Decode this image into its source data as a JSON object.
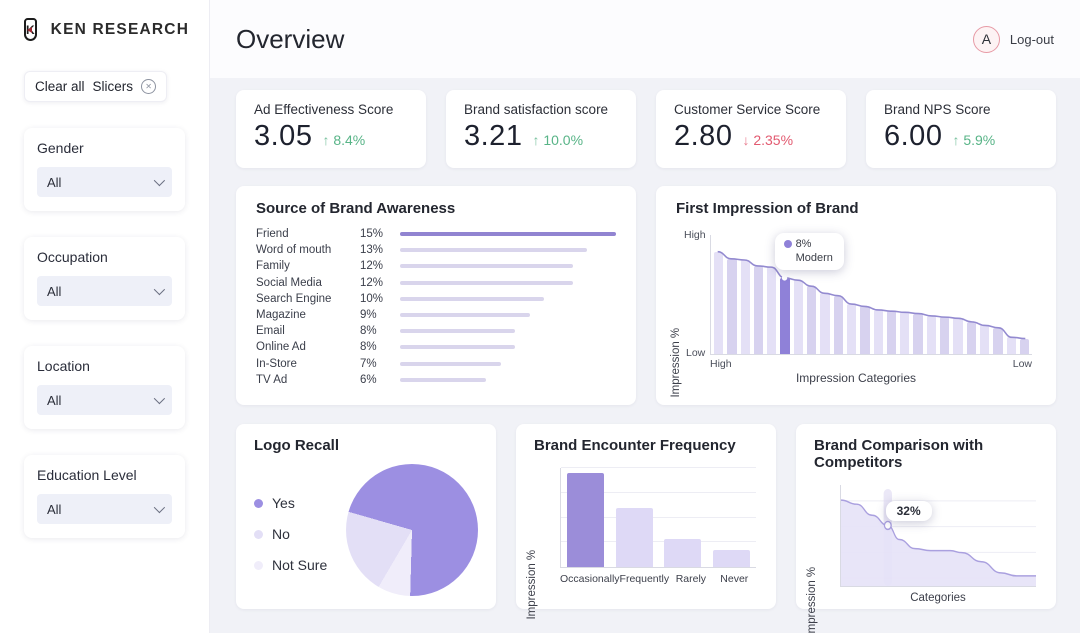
{
  "header": {
    "brand": "KEN RESEARCH",
    "title": "Overview",
    "avatar_letter": "A",
    "logout_label": "Log-out"
  },
  "sidebar": {
    "clear_button": {
      "label_1": "Clear all",
      "label_2": "Slicers"
    },
    "filters": [
      {
        "label": "Gender",
        "value": "All"
      },
      {
        "label": "Occupation",
        "value": "All"
      },
      {
        "label": "Location",
        "value": "All"
      },
      {
        "label": "Education Level",
        "value": "All"
      }
    ]
  },
  "kpis": [
    {
      "label": "Ad Effectiveness Score",
      "value": "3.05",
      "arrow": "↑",
      "delta": "8.4%",
      "direction": "up"
    },
    {
      "label": "Brand satisfaction score",
      "value": "3.21",
      "arrow": "↑",
      "delta": "10.0%",
      "direction": "up"
    },
    {
      "label": "Customer Service Score",
      "value": "2.80",
      "arrow": "↓",
      "delta": "2.35%",
      "direction": "down"
    },
    {
      "label": "Brand NPS Score",
      "value": "6.00",
      "arrow": "↑",
      "delta": "5.9%",
      "direction": "up"
    }
  ],
  "colors": {
    "accent": "#9c8fe2",
    "bar_strong": "#9184d1",
    "bar_light": "#d9d5ec",
    "imp_bar_a": "#e4e0f6",
    "imp_bar_b": "#d7d2ef",
    "imp_highlight": "#8f81d8",
    "line": "#938ad0",
    "pie": [
      "#9c8fe2",
      "#e3dff6",
      "#f0edfa"
    ],
    "area_fill": "#e6e2f7",
    "area_stroke": "#aaa0df",
    "band": "#ddd8f2",
    "up": "#58b487",
    "down": "#e25a70"
  },
  "chart_data": [
    {
      "type": "bar",
      "orientation": "horizontal",
      "title": "Source of Brand Awareness",
      "categories": [
        "Friend",
        "Word of mouth",
        "Family",
        "Social Media",
        "Search Engine",
        "Magazine",
        "Email",
        "Online Ad",
        "In-Store",
        "TV Ad"
      ],
      "values": [
        15,
        13,
        12,
        12,
        10,
        9,
        8,
        8,
        7,
        6
      ],
      "unit": "%",
      "highlight_index": 0,
      "xlim": [
        0,
        15
      ]
    },
    {
      "type": "bar",
      "title": "First Impression of Brand",
      "ylabel": "Impression %",
      "xlabel": "Impression Categories",
      "y_ticks": [
        "High",
        "Low"
      ],
      "x_ticks": [
        "High",
        "Low"
      ],
      "values": [
        86,
        80,
        79,
        74,
        73,
        64,
        62,
        57,
        51,
        49,
        42,
        40,
        37,
        36,
        35,
        34,
        32,
        31,
        30,
        27,
        24,
        22,
        14,
        13
      ],
      "highlight_index": 5,
      "line_overlay": true,
      "tooltip": {
        "value": "8%",
        "label": "Modern"
      }
    },
    {
      "type": "pie",
      "title": "Logo Recall",
      "legend": [
        "Yes",
        "No",
        "Not Sure"
      ],
      "values": [
        71,
        21,
        8
      ],
      "start_angle_deg": 286,
      "draw_order": [
        0,
        2,
        1
      ],
      "legend_position": "left"
    },
    {
      "type": "bar",
      "title": "Brand Encounter Frequency",
      "categories": [
        "Occasionally",
        "Frequently",
        "Rarely",
        "Never"
      ],
      "values": [
        95,
        60,
        28,
        17
      ],
      "ylabel": "Impression %",
      "highlight_index": 0,
      "grid": true
    },
    {
      "type": "area",
      "title": "Brand Comparison with Competitors",
      "ylabel": "Impression %",
      "xlabel": "Categories",
      "grid": true,
      "points": [
        [
          0,
          85
        ],
        [
          8,
          81
        ],
        [
          16,
          70
        ],
        [
          24,
          60
        ],
        [
          30,
          46
        ],
        [
          38,
          37
        ],
        [
          46,
          35
        ],
        [
          56,
          35
        ],
        [
          62,
          33
        ],
        [
          72,
          24
        ],
        [
          82,
          13
        ],
        [
          90,
          10
        ],
        [
          100,
          10
        ]
      ],
      "marker": {
        "x": 24,
        "y": 60,
        "tooltip": "32%"
      }
    }
  ]
}
